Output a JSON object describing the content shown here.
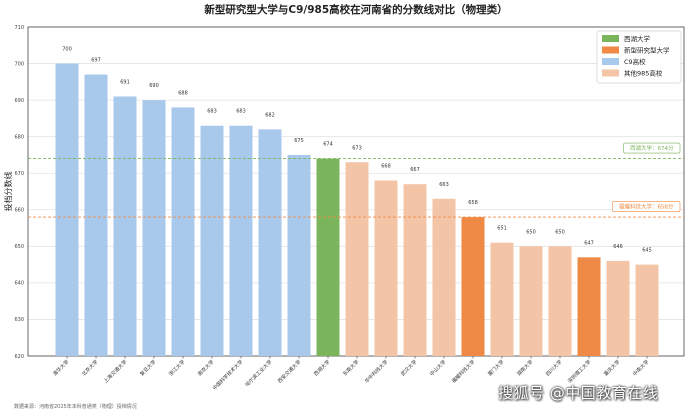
{
  "chart_data": {
    "type": "bar",
    "title": "新型研究型大学与C9/985高校在河南省的分数线对比（物理类）",
    "xlabel": "",
    "ylabel": "投档分数线",
    "ylim": [
      620,
      710
    ],
    "yticks": [
      620,
      630,
      640,
      650,
      660,
      670,
      680,
      690,
      700,
      710
    ],
    "grid": true,
    "legend_position": "top-right",
    "legend": [
      {
        "label": "西湖大学",
        "color": "#7ab55c"
      },
      {
        "label": "新型研究型大学",
        "color": "#ef8a46"
      },
      {
        "label": "C9高校",
        "color": "#a9c9ec"
      },
      {
        "label": "其他985高校",
        "color": "#f4c4a7"
      }
    ],
    "categories": [
      "清华大学",
      "北京大学",
      "上海交通大学",
      "复旦大学",
      "浙江大学",
      "南京大学",
      "中国科学技术大学",
      "哈尔滨工业大学",
      "西安交通大学",
      "西湖大学",
      "东南大学",
      "华中科技大学",
      "武汉大学",
      "中山大学",
      "福耀科技大学",
      "厦门大学",
      "湖南大学",
      "四川大学",
      "深圳理工大学",
      "重庆大学",
      "中南大学"
    ],
    "values": [
      700,
      697,
      691,
      690,
      688,
      683,
      683,
      682,
      675,
      674,
      673,
      668,
      667,
      663,
      658,
      651,
      650,
      650,
      647,
      646,
      645
    ],
    "groups": [
      "C9高校",
      "C9高校",
      "C9高校",
      "C9高校",
      "C9高校",
      "C9高校",
      "C9高校",
      "C9高校",
      "C9高校",
      "西湖大学",
      "其他985高校",
      "其他985高校",
      "其他985高校",
      "其他985高校",
      "新型研究型大学",
      "其他985高校",
      "其他985高校",
      "其他985高校",
      "新型研究型大学",
      "其他985高校",
      "其他985高校"
    ],
    "reference_lines": [
      {
        "label": "西湖大学：674分",
        "value": 674,
        "color": "#7ab55c"
      },
      {
        "label": "福耀科技大学：658分",
        "value": 658,
        "color": "#ef8a46"
      }
    ]
  },
  "source_note": "数据来源：河南省2025年本科普通类（物理）投档情况",
  "watermark": "搜狐号 @中国教育在线"
}
